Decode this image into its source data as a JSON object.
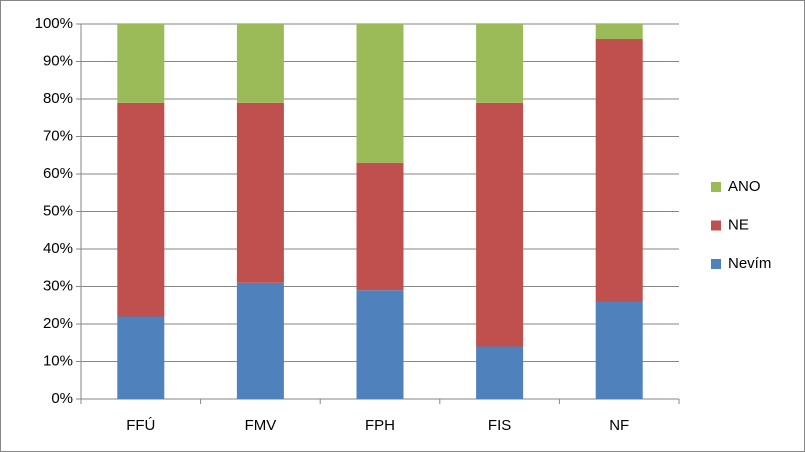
{
  "chart_data": {
    "type": "stacked-bar-100",
    "categories": [
      "FFÚ",
      "FMV",
      "FPH",
      "FIS",
      "NF"
    ],
    "series": [
      {
        "name": "Nevím",
        "color": "#4f81bd",
        "values": [
          22,
          31,
          29,
          14,
          26
        ]
      },
      {
        "name": "NE",
        "color": "#c0504d",
        "values": [
          57,
          48,
          34,
          65,
          70
        ]
      },
      {
        "name": "ANO",
        "color": "#9bbb59",
        "values": [
          21,
          21,
          37,
          21,
          4
        ]
      }
    ],
    "ylim": [
      0,
      100
    ],
    "yticks": [
      {
        "value": 0,
        "label": "0%"
      },
      {
        "value": 10,
        "label": "10%"
      },
      {
        "value": 20,
        "label": "20%"
      },
      {
        "value": 30,
        "label": "30%"
      },
      {
        "value": 40,
        "label": "40%"
      },
      {
        "value": 50,
        "label": "50%"
      },
      {
        "value": 60,
        "label": "60%"
      },
      {
        "value": 70,
        "label": "70%"
      },
      {
        "value": 80,
        "label": "80%"
      },
      {
        "value": 90,
        "label": "90%"
      },
      {
        "value": 100,
        "label": "100%"
      }
    ],
    "grid": true,
    "legend": "right"
  }
}
